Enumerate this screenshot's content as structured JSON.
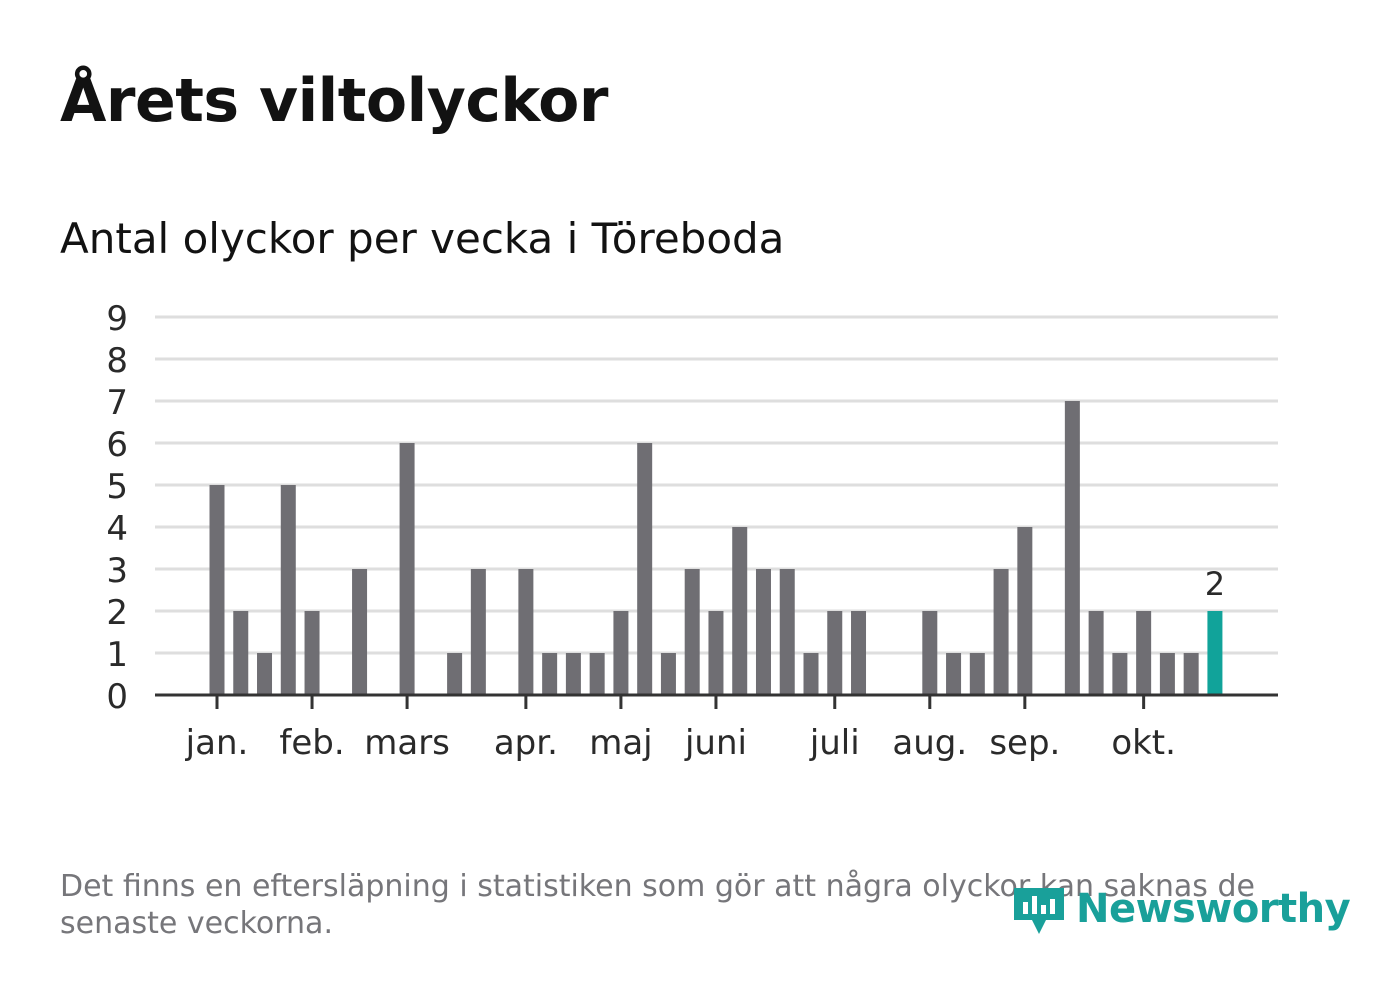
{
  "title": "Årets viltolyckor",
  "subtitle": "Antal olyckor per vecka i Töreboda",
  "footnote": "Det finns en eftersläpning i statistiken som gör att några olyckor kan saknas de senaste veckorna.",
  "logo": {
    "text": "Newsworthy"
  },
  "colors": {
    "bar": "#6f6e73",
    "highlight": "#11a39a",
    "grid": "#dedede",
    "axis": "#333333",
    "logo": "#19a09a"
  },
  "chart_data": {
    "type": "bar",
    "ylim": [
      0,
      9
    ],
    "yticks": [
      0,
      1,
      2,
      3,
      4,
      5,
      6,
      7,
      8,
      9
    ],
    "weeks": 43,
    "values": [
      5,
      2,
      1,
      5,
      2,
      0,
      3,
      0,
      6,
      0,
      1,
      3,
      0,
      3,
      1,
      1,
      1,
      2,
      6,
      1,
      3,
      2,
      4,
      3,
      3,
      1,
      2,
      2,
      0,
      0,
      2,
      1,
      1,
      3,
      4,
      0,
      7,
      2,
      1,
      2,
      1,
      1,
      2
    ],
    "highlight_index": 42,
    "highlight_label": "2",
    "month_labels": [
      {
        "label": "jan.",
        "week": 1
      },
      {
        "label": "feb.",
        "week": 5
      },
      {
        "label": "mars",
        "week": 9
      },
      {
        "label": "apr.",
        "week": 14
      },
      {
        "label": "maj",
        "week": 18
      },
      {
        "label": "juni",
        "week": 22
      },
      {
        "label": "juli",
        "week": 27
      },
      {
        "label": "aug.",
        "week": 31
      },
      {
        "label": "sep.",
        "week": 35
      },
      {
        "label": "okt.",
        "week": 40
      }
    ]
  }
}
